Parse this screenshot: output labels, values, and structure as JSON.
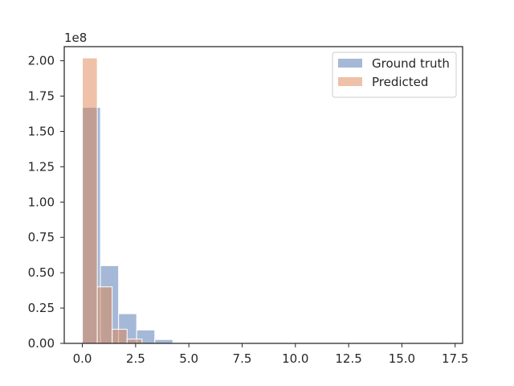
{
  "chart_data": {
    "type": "bar",
    "chart_kind": "overlaid histogram",
    "title": "",
    "xlabel": "",
    "ylabel": "",
    "y_scale_label": "1e8",
    "xlim": [
      -0.85,
      17.85
    ],
    "ylim": [
      0,
      2.1
    ],
    "x_ticks": [
      0.0,
      2.5,
      5.0,
      7.5,
      10.0,
      12.5,
      15.0,
      17.5
    ],
    "x_tick_labels": [
      "0.0",
      "2.5",
      "5.0",
      "7.5",
      "10.0",
      "12.5",
      "15.0",
      "17.5"
    ],
    "y_ticks": [
      0.0,
      0.25,
      0.5,
      0.75,
      1.0,
      1.25,
      1.5,
      1.75,
      2.0
    ],
    "y_tick_labels": [
      "0.00",
      "0.25",
      "0.50",
      "0.75",
      "1.00",
      "1.25",
      "1.50",
      "1.75",
      "2.00"
    ],
    "grid": false,
    "legend_position": "top-right",
    "series": [
      {
        "name": "Ground truth",
        "color": "#4c72b0",
        "opacity": 0.5,
        "bin_edges": [
          0.0,
          0.85,
          1.7,
          2.55,
          3.4,
          4.25,
          5.1,
          5.95,
          6.8,
          7.65,
          8.5,
          9.35,
          10.2,
          11.05,
          11.9,
          12.75,
          13.6,
          14.45,
          15.3,
          16.15,
          17.0
        ],
        "values": [
          1.67,
          0.55,
          0.21,
          0.095,
          0.027,
          0.006,
          0.002,
          0.001,
          0.0005,
          0.0003,
          0.0002,
          0.0001,
          0.0001,
          0.0001,
          0.0001,
          0.0,
          0.0,
          0.0,
          0.0,
          0.0
        ]
      },
      {
        "name": "Predicted",
        "color": "#dd8452",
        "opacity": 0.5,
        "bin_edges": [
          0.0,
          0.7,
          1.4,
          2.1,
          2.8,
          3.5
        ],
        "values": [
          2.02,
          0.4,
          0.1,
          0.03,
          0.004
        ]
      }
    ]
  }
}
